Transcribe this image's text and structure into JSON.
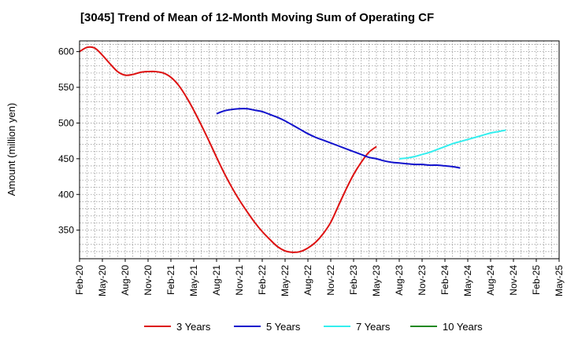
{
  "chart_data": {
    "type": "line",
    "title": "[3045]  Trend of Mean of 12-Month Moving Sum of Operating CF",
    "xlabel": "",
    "ylabel": "Amount (million yen)",
    "ylim": [
      310,
      615
    ],
    "yticks": [
      350,
      400,
      450,
      500,
      550,
      600
    ],
    "x_ticks": [
      "Feb-20",
      "May-20",
      "Aug-20",
      "Nov-20",
      "Feb-21",
      "May-21",
      "Aug-21",
      "Nov-21",
      "Feb-22",
      "May-22",
      "Aug-22",
      "Nov-22",
      "Feb-23",
      "May-23",
      "Aug-23",
      "Nov-23",
      "Feb-24",
      "May-24",
      "Aug-24",
      "Nov-24",
      "Feb-25",
      "May-25"
    ],
    "grid": true,
    "legend_position": "bottom",
    "series": [
      {
        "name": "3 Years",
        "color": "#dd1111",
        "points": [
          [
            0,
            600
          ],
          [
            1,
            606
          ],
          [
            2,
            605
          ],
          [
            3,
            595
          ],
          [
            4,
            583
          ],
          [
            5,
            572
          ],
          [
            6,
            567
          ],
          [
            7,
            568
          ],
          [
            8,
            571
          ],
          [
            9,
            572
          ],
          [
            10,
            572
          ],
          [
            11,
            570
          ],
          [
            12,
            564
          ],
          [
            13,
            553
          ],
          [
            14,
            537
          ],
          [
            15,
            518
          ],
          [
            16,
            497
          ],
          [
            17,
            475
          ],
          [
            18,
            452
          ],
          [
            19,
            430
          ],
          [
            20,
            410
          ],
          [
            21,
            392
          ],
          [
            22,
            376
          ],
          [
            23,
            361
          ],
          [
            24,
            348
          ],
          [
            25,
            337
          ],
          [
            26,
            327
          ],
          [
            27,
            321
          ],
          [
            28,
            319
          ],
          [
            29,
            320
          ],
          [
            30,
            325
          ],
          [
            31,
            333
          ],
          [
            32,
            345
          ],
          [
            33,
            361
          ],
          [
            34,
            384
          ],
          [
            35,
            407
          ],
          [
            36,
            428
          ],
          [
            37,
            445
          ],
          [
            38,
            459
          ],
          [
            39,
            467
          ]
        ]
      },
      {
        "name": "5 Years",
        "color": "#1111cc",
        "points": [
          [
            18,
            513
          ],
          [
            19,
            517
          ],
          [
            20,
            519
          ],
          [
            21,
            520
          ],
          [
            22,
            520
          ],
          [
            23,
            518
          ],
          [
            24,
            516
          ],
          [
            25,
            512
          ],
          [
            26,
            508
          ],
          [
            27,
            503
          ],
          [
            28,
            497
          ],
          [
            29,
            491
          ],
          [
            30,
            485
          ],
          [
            31,
            480
          ],
          [
            32,
            476
          ],
          [
            33,
            472
          ],
          [
            34,
            468
          ],
          [
            35,
            464
          ],
          [
            36,
            460
          ],
          [
            37,
            456
          ],
          [
            38,
            452
          ],
          [
            39,
            450
          ],
          [
            40,
            447
          ],
          [
            41,
            445
          ],
          [
            42,
            444
          ],
          [
            43,
            443
          ],
          [
            44,
            442
          ],
          [
            45,
            442
          ],
          [
            46,
            441
          ],
          [
            47,
            441
          ],
          [
            48,
            440
          ],
          [
            49,
            439
          ],
          [
            50,
            437
          ]
        ]
      },
      {
        "name": "7 Years",
        "color": "#33eeee",
        "points": [
          [
            42,
            450
          ],
          [
            43,
            451
          ],
          [
            44,
            453
          ],
          [
            45,
            456
          ],
          [
            46,
            459
          ],
          [
            47,
            463
          ],
          [
            48,
            467
          ],
          [
            49,
            471
          ],
          [
            50,
            474
          ],
          [
            51,
            477
          ],
          [
            52,
            480
          ],
          [
            53,
            483
          ],
          [
            54,
            486
          ],
          [
            55,
            488
          ],
          [
            56,
            490
          ]
        ]
      },
      {
        "name": "10 Years",
        "color": "#228822",
        "points": []
      }
    ]
  }
}
